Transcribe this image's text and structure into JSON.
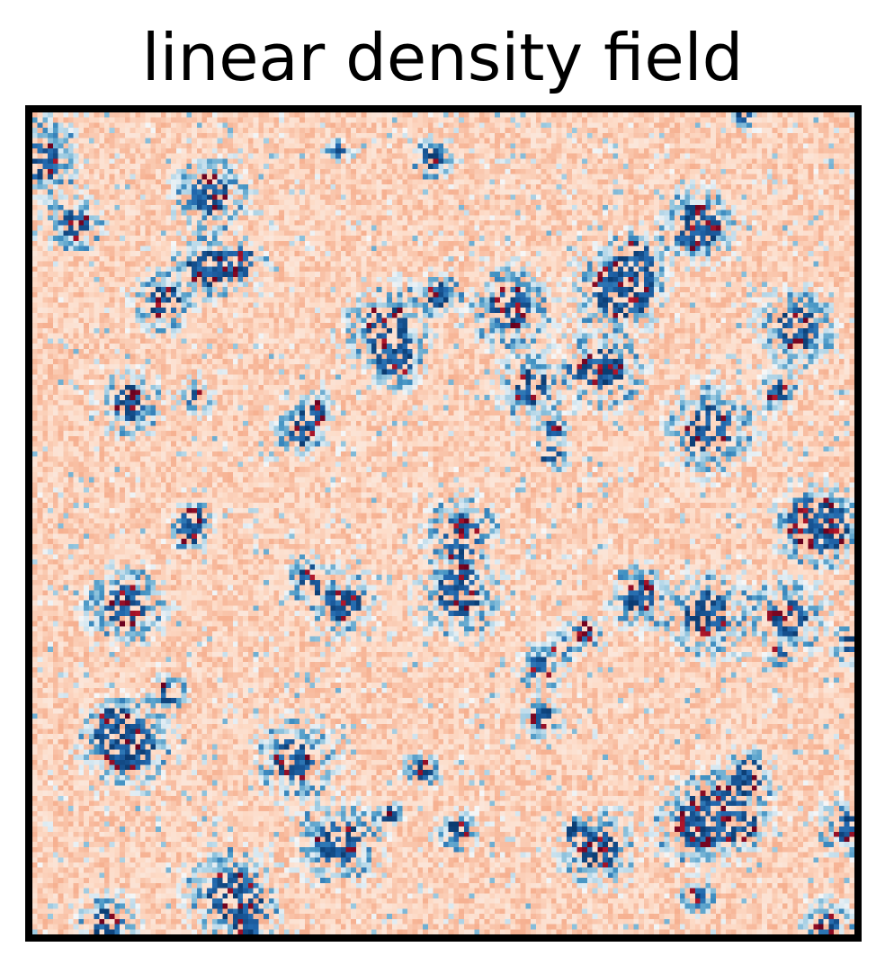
{
  "chart_data": {
    "type": "heatmap",
    "title": "linear density field",
    "xlabel": "",
    "ylabel": "",
    "axes_ticks": "none",
    "colorbar": "none",
    "colormap": "RdBu",
    "grid_cells": [
      160,
      160
    ],
    "colormap_stops": [
      "#053061",
      "#2166ac",
      "#4393c3",
      "#92c5de",
      "#d1e5f0",
      "#f7f7f7",
      "#fddbc7",
      "#f4a582",
      "#d6604d",
      "#b2182b",
      "#67001f"
    ],
    "dominant_tone": "#fbe3d8",
    "clusters_note_free": true
  }
}
